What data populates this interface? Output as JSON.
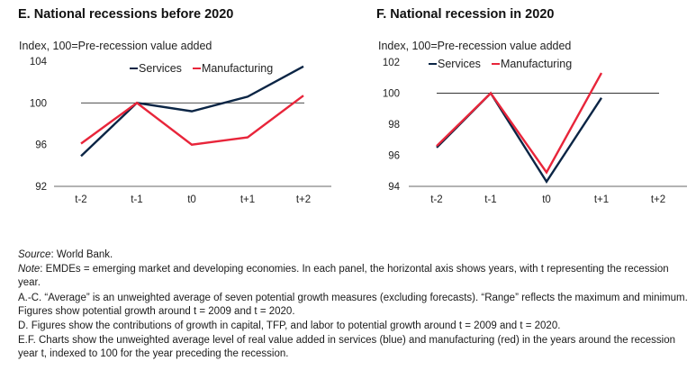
{
  "chart_data": [
    {
      "type": "line",
      "title": "E. National recessions before 2020",
      "ylabel": "Index, 100=Pre-recession value added",
      "xlabel": "",
      "categories": [
        "t-2",
        "t-1",
        "t0",
        "t+1",
        "t+2"
      ],
      "yticks": [
        92,
        96,
        100,
        104
      ],
      "ylim": [
        92,
        104
      ],
      "reference_line": 100,
      "legend_position": "top-right",
      "series": [
        {
          "name": "Services",
          "color": "#0b2545",
          "values": [
            94.9,
            100.0,
            99.2,
            100.6,
            103.5
          ]
        },
        {
          "name": "Manufacturing",
          "color": "#e8253a",
          "values": [
            96.1,
            100.0,
            96.0,
            96.7,
            100.7
          ]
        }
      ]
    },
    {
      "type": "line",
      "title": "F. National recession in 2020",
      "ylabel": "Index, 100=Pre-recession value added",
      "xlabel": "",
      "categories": [
        "t-2",
        "t-1",
        "t0",
        "t+1",
        "t+2"
      ],
      "yticks": [
        94,
        96,
        98,
        100,
        102
      ],
      "ylim": [
        94,
        102
      ],
      "reference_line": 100,
      "legend_position": "top-left",
      "series": [
        {
          "name": "Services",
          "color": "#0b2545",
          "values": [
            96.5,
            100.0,
            94.3,
            99.7,
            null
          ]
        },
        {
          "name": "Manufacturing",
          "color": "#e8253a",
          "values": [
            96.6,
            100.0,
            94.9,
            101.3,
            null
          ]
        }
      ]
    }
  ],
  "notes": {
    "source_label": "Source",
    "source_text": ": World Bank.",
    "note_label": "Note",
    "note_text": ": EMDEs = emerging market and developing economies. In each panel, the horizontal axis shows years, with t representing the recession year.",
    "ac_text": "A.-C. “Average” is an unweighted average of seven potential growth measures (excluding forecasts). “Range” reflects the maximum and minimum. Figures show potential growth around t = 2009 and t = 2020.",
    "d_text": "D. Figures show the contributions of growth in capital, TFP, and labor to potential growth around t = 2009 and t = 2020.",
    "ef_text": "E.F. Charts show the unweighted average level of real value added in services (blue) and manufacturing (red) in the years around the recession year t, indexed to 100 for the year preceding the recession."
  }
}
